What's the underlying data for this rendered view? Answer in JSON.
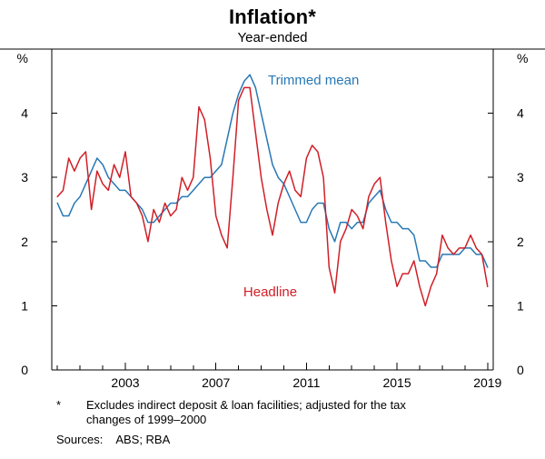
{
  "page": {
    "title": "Inflation*",
    "subtitle": "Year-ended",
    "footnote_marker": "*",
    "footnote_line1": "Excludes indirect deposit & loan facilities; adjusted for the tax",
    "footnote_line2": "changes of 1999–2000",
    "sources_label": "Sources:",
    "sources_value": "ABS; RBA"
  },
  "chart_data": {
    "type": "line",
    "title": "Inflation*",
    "subtitle": "Year-ended",
    "unit": "%",
    "ylim": [
      0,
      5
    ],
    "xlim": [
      1999.75,
      2019.25
    ],
    "y_ticks": [
      0,
      1,
      2,
      3,
      4
    ],
    "x_ticks": [
      2003,
      2007,
      2011,
      2015,
      2019
    ],
    "grid": false,
    "x": [
      2000,
      2000.25,
      2000.5,
      2000.75,
      2001,
      2001.25,
      2001.5,
      2001.75,
      2002,
      2002.25,
      2002.5,
      2002.75,
      2003,
      2003.25,
      2003.5,
      2003.75,
      2004,
      2004.25,
      2004.5,
      2004.75,
      2005,
      2005.25,
      2005.5,
      2005.75,
      2006,
      2006.25,
      2006.5,
      2006.75,
      2007,
      2007.25,
      2007.5,
      2007.75,
      2008,
      2008.25,
      2008.5,
      2008.75,
      2009,
      2009.25,
      2009.5,
      2009.75,
      2010,
      2010.25,
      2010.5,
      2010.75,
      2011,
      2011.25,
      2011.5,
      2011.75,
      2012,
      2012.25,
      2012.5,
      2012.75,
      2013,
      2013.25,
      2013.5,
      2013.75,
      2014,
      2014.25,
      2014.5,
      2014.75,
      2015,
      2015.25,
      2015.5,
      2015.75,
      2016,
      2016.25,
      2016.5,
      2016.75,
      2017,
      2017.25,
      2017.5,
      2017.75,
      2018,
      2018.25,
      2018.5,
      2018.75,
      2019
    ],
    "series": [
      {
        "name": "Trimmed mean",
        "color": "#2778b5",
        "label_x": 2009.3,
        "label_y": 4.52,
        "label_anchor": "start",
        "values": [
          2.6,
          2.4,
          2.4,
          2.6,
          2.7,
          2.9,
          3.1,
          3.3,
          3.2,
          3.0,
          2.9,
          2.8,
          2.8,
          2.7,
          2.6,
          2.5,
          2.3,
          2.3,
          2.4,
          2.5,
          2.6,
          2.6,
          2.7,
          2.7,
          2.8,
          2.9,
          3.0,
          3.0,
          3.1,
          3.2,
          3.6,
          4.0,
          4.3,
          4.5,
          4.6,
          4.4,
          4.0,
          3.6,
          3.2,
          3.0,
          2.9,
          2.7,
          2.5,
          2.3,
          2.3,
          2.5,
          2.6,
          2.6,
          2.2,
          2.0,
          2.3,
          2.3,
          2.2,
          2.3,
          2.3,
          2.6,
          2.7,
          2.8,
          2.5,
          2.3,
          2.3,
          2.2,
          2.2,
          2.1,
          1.7,
          1.7,
          1.6,
          1.6,
          1.8,
          1.8,
          1.8,
          1.8,
          1.9,
          1.9,
          1.8,
          1.8,
          1.6
        ]
      },
      {
        "name": "Headline",
        "color": "#d01f27",
        "label_x": 2009.4,
        "label_y": 1.22,
        "label_anchor": "middle",
        "values": [
          2.7,
          2.8,
          3.3,
          3.1,
          3.3,
          3.4,
          2.5,
          3.1,
          2.9,
          2.8,
          3.2,
          3.0,
          3.4,
          2.7,
          2.6,
          2.4,
          2.0,
          2.5,
          2.3,
          2.6,
          2.4,
          2.5,
          3.0,
          2.8,
          3.0,
          4.1,
          3.9,
          3.3,
          2.4,
          2.1,
          1.9,
          3.0,
          4.2,
          4.4,
          4.4,
          3.7,
          3.0,
          2.5,
          2.1,
          2.6,
          2.9,
          3.1,
          2.8,
          2.7,
          3.3,
          3.5,
          3.4,
          3.0,
          1.6,
          1.2,
          2.0,
          2.2,
          2.5,
          2.4,
          2.2,
          2.7,
          2.9,
          3.0,
          2.3,
          1.7,
          1.3,
          1.5,
          1.5,
          1.7,
          1.3,
          1.0,
          1.3,
          1.5,
          2.1,
          1.9,
          1.8,
          1.9,
          1.9,
          2.1,
          1.9,
          1.8,
          1.3
        ]
      }
    ]
  }
}
